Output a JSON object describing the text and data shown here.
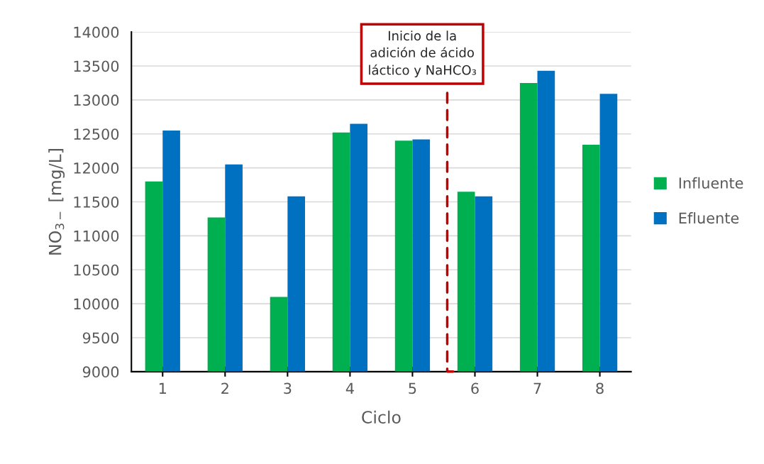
{
  "chart_data": {
    "type": "bar",
    "xlabel": "Ciclo",
    "ylabel": "NO$_{3−}$ [mg/L]",
    "categories": [
      "1",
      "2",
      "3",
      "4",
      "5",
      "6",
      "7",
      "8"
    ],
    "series": [
      {
        "name": "Influente",
        "color": "#00b050",
        "values": [
          11800,
          11270,
          10100,
          12520,
          12400,
          11650,
          13250,
          12340
        ]
      },
      {
        "name": "Efluente",
        "color": "#0070c0",
        "values": [
          12550,
          12050,
          11580,
          12650,
          12420,
          11580,
          13430,
          13090
        ]
      }
    ],
    "ylim": [
      9000,
      14000
    ],
    "yticks": [
      9000,
      9500,
      10000,
      10500,
      11000,
      11500,
      12000,
      12500,
      13000,
      13500,
      14000
    ],
    "grid": "y",
    "legend": "right",
    "annotations": [
      "Inicio de la\nadición de ácido\nláctico y NaHCO₃"
    ]
  }
}
